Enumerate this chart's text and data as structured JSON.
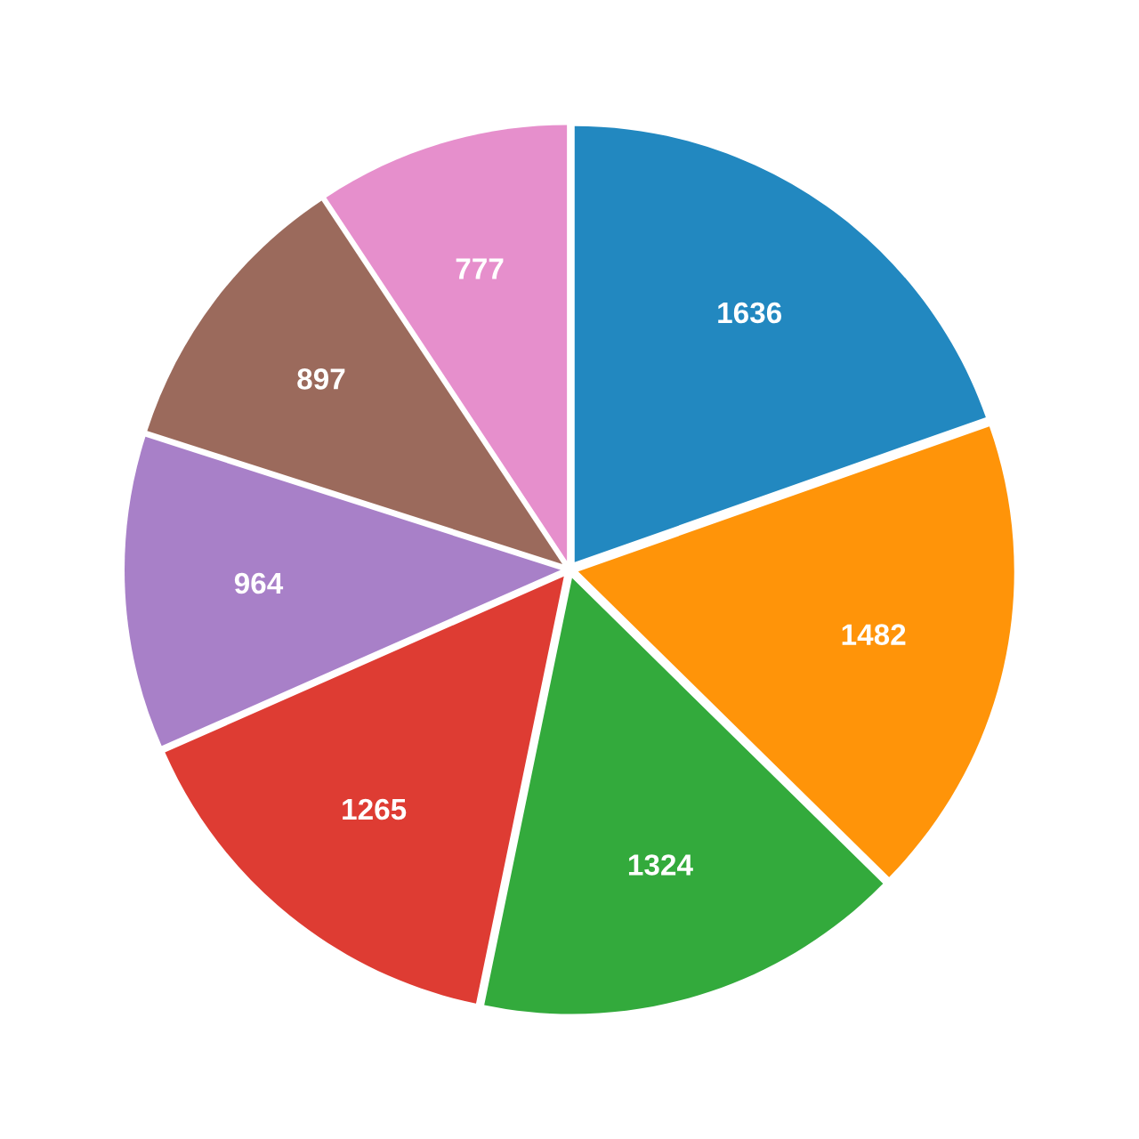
{
  "chart_data": {
    "type": "pie",
    "categories": [
      null,
      null,
      null,
      null,
      null,
      null,
      null
    ],
    "values": [
      1636,
      1482,
      1324,
      1265,
      964,
      897,
      777
    ],
    "colors": [
      "#2288c0",
      "#ff9409",
      "#33aa3c",
      "#de3c33",
      "#a880c8",
      "#9b6a5c",
      "#e68fcc"
    ],
    "data_labels": true
  }
}
